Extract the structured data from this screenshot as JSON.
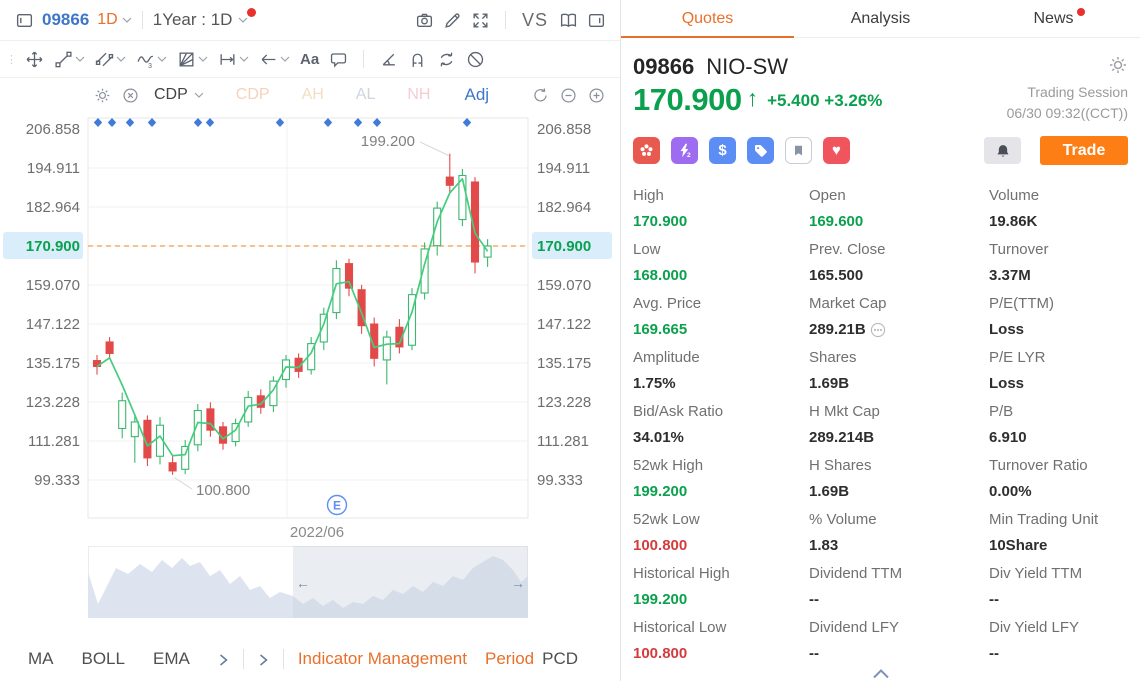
{
  "top_toolbar": {
    "symbol": "09866",
    "frequency": "1D",
    "range": "1Year : 1D",
    "compare_label": "VS",
    "has_notification_dot": true
  },
  "draw_toolbar": {
    "tools": [
      {
        "name": "move-tool"
      },
      {
        "name": "trendline-tool",
        "chevron": true
      },
      {
        "name": "channel-tool",
        "chevron": true
      },
      {
        "name": "wave-tool",
        "chevron": true
      },
      {
        "name": "gann-tool",
        "chevron": true
      },
      {
        "name": "extend-line-tool",
        "chevron": true
      },
      {
        "name": "arrow-tool",
        "chevron": true
      },
      {
        "name": "text-tool",
        "glyph": "Aa"
      },
      {
        "name": "comment-tool"
      },
      {
        "name": "divider"
      },
      {
        "name": "angle-tool"
      },
      {
        "name": "magnet-tool"
      },
      {
        "name": "sync-drawings-tool"
      },
      {
        "name": "hide-drawings-tool"
      }
    ]
  },
  "indicator_bar": {
    "active_indicator": "CDP",
    "faded_indicators": [
      {
        "label": "CDP",
        "color": "#f5d2bb"
      },
      {
        "label": "AH",
        "color": "#f2dfc3"
      },
      {
        "label": "AL",
        "color": "#ccd5e0"
      },
      {
        "label": "NH",
        "color": "#f6ccd3"
      }
    ],
    "adjust_label": "Adj"
  },
  "chart": {
    "y_axis_labels": [
      "206.858",
      "194.911",
      "182.964",
      "170.900",
      "159.070",
      "147.122",
      "135.175",
      "123.228",
      "111.281",
      "99.333"
    ],
    "current_price_label": "170.900",
    "x_axis_label": "2022/06",
    "high_annotation": "199.200",
    "low_annotation": "100.800",
    "event_marker": "E"
  },
  "chart_data": {
    "type": "candlestick",
    "symbol": "09866 NIO-SW",
    "timeframe": "1D",
    "visible_range": "1Year : 1D",
    "y_ticks": [
      206.858,
      194.911,
      182.964,
      170.9,
      159.07,
      147.122,
      135.175,
      123.228,
      111.281,
      99.333
    ],
    "x_tick_labels": [
      "2022/06"
    ],
    "current_price": 170.9,
    "annotated_high": 199.2,
    "annotated_low": 100.8,
    "grid": true,
    "ma_overlay": "short-term moving average (green line)",
    "event_diamond_xs": [
      98,
      112,
      130,
      152,
      198,
      210,
      280,
      328,
      358,
      377,
      467
    ],
    "candles_ohlc": [
      [
        135.8,
        137.5,
        131.5,
        134.0
      ],
      [
        141.5,
        143.0,
        136.5,
        138.0
      ],
      [
        115.0,
        126.0,
        112.0,
        123.5
      ],
      [
        112.5,
        119.5,
        104.5,
        117.0
      ],
      [
        117.5,
        119.0,
        103.5,
        106.0
      ],
      [
        106.5,
        118.5,
        104.0,
        116.0
      ],
      [
        104.5,
        106.5,
        100.8,
        102.0
      ],
      [
        102.5,
        111.5,
        101.0,
        109.5
      ],
      [
        110.0,
        122.5,
        108.0,
        120.5
      ],
      [
        121.0,
        123.0,
        112.5,
        114.5
      ],
      [
        115.5,
        117.0,
        108.5,
        110.5
      ],
      [
        111.0,
        118.0,
        109.5,
        116.5
      ],
      [
        117.0,
        126.5,
        115.5,
        124.5
      ],
      [
        125.0,
        127.0,
        119.5,
        121.5
      ],
      [
        122.0,
        131.0,
        120.0,
        129.5
      ],
      [
        130.0,
        137.5,
        127.5,
        136.0
      ],
      [
        136.5,
        138.0,
        130.5,
        132.5
      ],
      [
        133.0,
        143.0,
        131.5,
        141.0
      ],
      [
        141.5,
        152.0,
        139.0,
        150.0
      ],
      [
        150.5,
        166.5,
        148.5,
        164.0
      ],
      [
        165.5,
        167.0,
        155.5,
        158.0
      ],
      [
        157.5,
        159.0,
        144.0,
        146.5
      ],
      [
        147.0,
        149.0,
        134.0,
        136.5
      ],
      [
        136.0,
        145.0,
        128.5,
        143.0
      ],
      [
        146.0,
        148.5,
        138.0,
        140.0
      ],
      [
        140.5,
        158.0,
        139.0,
        156.0
      ],
      [
        156.5,
        172.0,
        154.5,
        170.0
      ],
      [
        171.0,
        184.5,
        168.0,
        182.5
      ],
      [
        192.0,
        199.2,
        187.0,
        189.5
      ],
      [
        179.0,
        194.5,
        177.0,
        192.5
      ],
      [
        190.5,
        192.0,
        162.5,
        166.0
      ],
      [
        167.5,
        173.0,
        164.5,
        170.9
      ]
    ]
  },
  "navigator": {
    "points": [
      [
        0,
        26
      ],
      [
        10,
        58
      ],
      [
        28,
        22
      ],
      [
        40,
        28
      ],
      [
        52,
        18
      ],
      [
        64,
        26
      ],
      [
        74,
        14
      ],
      [
        84,
        22
      ],
      [
        94,
        12
      ],
      [
        102,
        20
      ],
      [
        112,
        16
      ],
      [
        122,
        30
      ],
      [
        132,
        24
      ],
      [
        142,
        38
      ],
      [
        152,
        30
      ],
      [
        162,
        44
      ],
      [
        172,
        40
      ],
      [
        182,
        52
      ],
      [
        192,
        46
      ],
      [
        205,
        50
      ],
      [
        215,
        58
      ],
      [
        225,
        52
      ],
      [
        235,
        60
      ],
      [
        245,
        54
      ],
      [
        255,
        62
      ],
      [
        265,
        56
      ],
      [
        275,
        58
      ],
      [
        285,
        50
      ],
      [
        295,
        54
      ],
      [
        305,
        44
      ],
      [
        315,
        48
      ],
      [
        325,
        40
      ],
      [
        335,
        46
      ],
      [
        345,
        36
      ],
      [
        355,
        40
      ],
      [
        365,
        30
      ],
      [
        375,
        34
      ],
      [
        385,
        22
      ],
      [
        395,
        16
      ],
      [
        405,
        10
      ],
      [
        415,
        14
      ],
      [
        425,
        24
      ],
      [
        433,
        36
      ],
      [
        440,
        30
      ]
    ],
    "window_start_x": 205,
    "left_arrow": "←",
    "right_arrow": "→"
  },
  "bottom_bar": {
    "indicators": [
      "MA",
      "BOLL",
      "EMA"
    ],
    "management_label": "Indicator Management",
    "period_label": "Period",
    "period_value": "PCD"
  },
  "quote_panel": {
    "tabs": [
      {
        "label": "Quotes",
        "active": true
      },
      {
        "label": "Analysis"
      },
      {
        "label": "News",
        "dot": true
      }
    ],
    "symbol": "09866",
    "name": "NIO-SW",
    "price": "170.900",
    "up_arrow": "↑",
    "change": "+5.400",
    "change_pct": "+3.26%",
    "session_label": "Trading Session",
    "session_time": "06/30 09:32((CCT))",
    "trade_label": "Trade",
    "badges": [
      {
        "name": "hk-market-badge",
        "icon": "flower",
        "bg": "#e8594f"
      },
      {
        "name": "level2-quotes-badge",
        "icon": "bolt",
        "bg": "#9d6cf0"
      },
      {
        "name": "currency-badge",
        "icon": "dollar",
        "glyph": "$",
        "bg": "#5c8df5"
      },
      {
        "name": "tag-badge",
        "icon": "tag",
        "bg": "#5c8df5"
      },
      {
        "name": "flag-badge",
        "icon": "flag",
        "bg": "#ffffff",
        "border": "#c9ced6",
        "fg": "#8a93a3"
      },
      {
        "name": "favorite-badge",
        "icon": "heart",
        "glyph": "♥",
        "bg": "#f0545c"
      }
    ],
    "grid": [
      {
        "label": "High",
        "value": "170.900",
        "tone": "up"
      },
      {
        "label": "Open",
        "value": "169.600",
        "tone": "up"
      },
      {
        "label": "Volume",
        "value": "19.86K"
      },
      {
        "label": "Low",
        "value": "168.000",
        "tone": "up"
      },
      {
        "label": "Prev. Close",
        "value": "165.500"
      },
      {
        "label": "Turnover",
        "value": "3.37M"
      },
      {
        "label": "Avg. Price",
        "value": "169.665",
        "tone": "up"
      },
      {
        "label": "Market Cap",
        "value": "289.21B",
        "ellipsis": true
      },
      {
        "label": "P/E(TTM)",
        "value": "Loss"
      },
      {
        "label": "Amplitude",
        "value": "1.75%"
      },
      {
        "label": "Shares",
        "value": "1.69B"
      },
      {
        "label": "P/E LYR",
        "value": "Loss"
      },
      {
        "label": "Bid/Ask Ratio",
        "value": "34.01%"
      },
      {
        "label": "H Mkt Cap",
        "value": "289.214B"
      },
      {
        "label": "P/B",
        "value": "6.910"
      },
      {
        "label": "52wk High",
        "value": "199.200",
        "tone": "up"
      },
      {
        "label": "H Shares",
        "value": "1.69B"
      },
      {
        "label": "Turnover Ratio",
        "value": "0.00%"
      },
      {
        "label": "52wk Low",
        "value": "100.800",
        "tone": "down"
      },
      {
        "label": "% Volume",
        "value": "1.83"
      },
      {
        "label": "Min Trading Unit",
        "value": "10Share"
      },
      {
        "label": "Historical High",
        "value": "199.200",
        "tone": "up"
      },
      {
        "label": "Dividend TTM",
        "value": "--"
      },
      {
        "label": "Div Yield TTM",
        "value": "--"
      },
      {
        "label": "Historical Low",
        "value": "100.800",
        "tone": "down"
      },
      {
        "label": "Dividend LFY",
        "value": "--"
      },
      {
        "label": "Div Yield LFY",
        "value": "--"
      }
    ]
  },
  "colors": {
    "up": "#0ba04d",
    "down": "#d43c3c",
    "accent_orange": "#e8702a",
    "trade_button": "#fd7e14",
    "link_blue": "#3e77c9",
    "candle_up": "#3bb86d",
    "candle_down": "#e24a4a",
    "ma_line": "#44cd7e",
    "current_price_line": "#f0a145",
    "event_diamond": "#3f7bd8",
    "axis_highlight_bg": "#d9edfa"
  }
}
